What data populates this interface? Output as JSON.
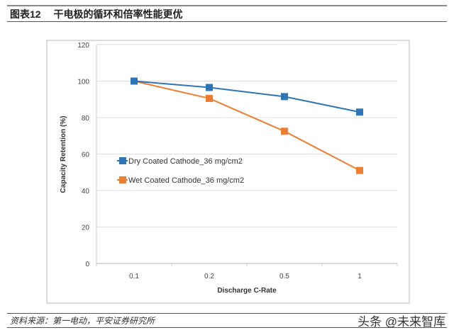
{
  "header": {
    "figure_label": "图表12",
    "title": "干电极的循环和倍率性能更优"
  },
  "footer": {
    "source": "资料来源：第一电动，平安证券研究所",
    "watermark": "头条 @未来智库"
  },
  "chart_data": {
    "type": "line",
    "categories": [
      "0.1",
      "0.2",
      "0.5",
      "1"
    ],
    "series": [
      {
        "name": "Dry Coated Cathode_36 mg/cm2",
        "color": "#2e75b6",
        "marker": "square",
        "values": [
          100,
          96.5,
          91.5,
          83
        ]
      },
      {
        "name": "Wet Coated Cathode_36 mg/cm2",
        "color": "#ed7d31",
        "marker": "square",
        "values": [
          100,
          90.5,
          72.5,
          51
        ]
      }
    ],
    "xlabel": "Discharge C-Rate",
    "ylabel": "Capacity Retention (%)",
    "ylim": [
      0,
      120
    ],
    "yticks": [
      "0",
      "20",
      "40",
      "60",
      "80",
      "100",
      "120"
    ],
    "grid": true,
    "legend": "center-left"
  }
}
